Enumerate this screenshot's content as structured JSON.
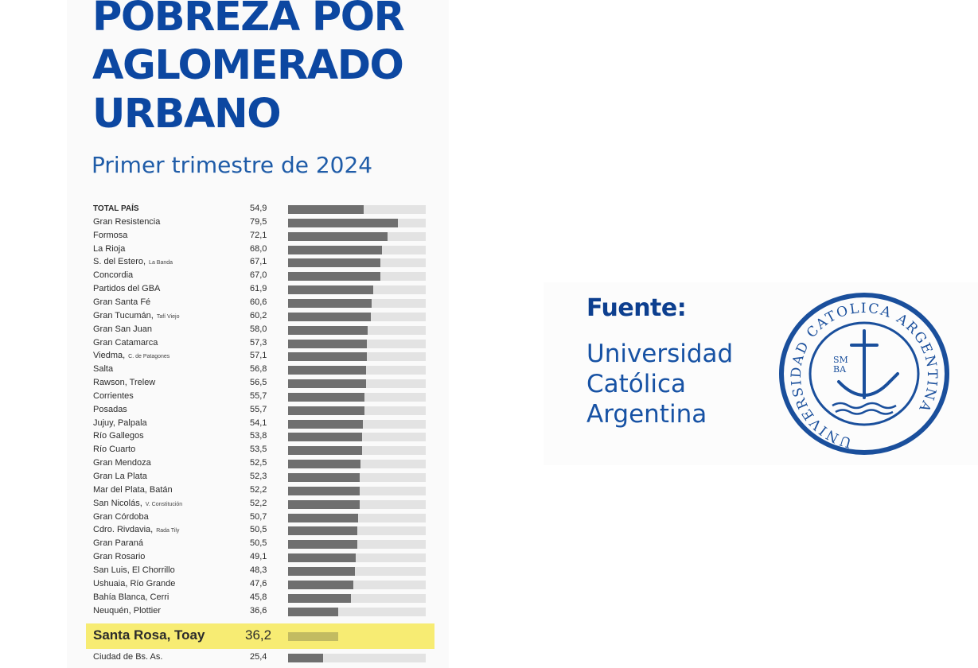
{
  "header": {
    "title_lines": [
      "POBREZA POR",
      "AGLOMERADO",
      "URBANO"
    ],
    "subtitle": "Primer trimestre de 2024"
  },
  "chart_data": {
    "type": "bar",
    "orientation": "horizontal",
    "title": "POBREZA POR AGLOMERADO URBANO",
    "subtitle": "Primer trimestre de 2024",
    "xlim": [
      0,
      100
    ],
    "grid": false,
    "legend": "none",
    "colors": {
      "bar": "#6f6f6f",
      "track": "#e3e3e3",
      "highlight": "#f7ec73",
      "highlight_bar": "#c2bb61"
    },
    "rows": [
      {
        "label": "TOTAL PAÍS",
        "sub": "",
        "value": 54.9,
        "display": "54,9",
        "bold": true
      },
      {
        "label": "Gran Resistencia",
        "sub": "",
        "value": 79.5,
        "display": "79,5"
      },
      {
        "label": "Formosa",
        "sub": "",
        "value": 72.1,
        "display": "72,1"
      },
      {
        "label": "La Rioja",
        "sub": "",
        "value": 68.0,
        "display": "68,0"
      },
      {
        "label": "S. del Estero,",
        "sub": "La Banda",
        "value": 67.1,
        "display": "67,1"
      },
      {
        "label": "Concordia",
        "sub": "",
        "value": 67.0,
        "display": "67,0"
      },
      {
        "label": "Partidos del GBA",
        "sub": "",
        "value": 61.9,
        "display": "61,9"
      },
      {
        "label": "Gran Santa Fé",
        "sub": "",
        "value": 60.6,
        "display": "60,6"
      },
      {
        "label": "Gran Tucumán,",
        "sub": "Tafí Viejo",
        "value": 60.2,
        "display": "60,2"
      },
      {
        "label": "Gran San Juan",
        "sub": "",
        "value": 58.0,
        "display": "58,0"
      },
      {
        "label": "Gran Catamarca",
        "sub": "",
        "value": 57.3,
        "display": "57,3"
      },
      {
        "label": "Viedma,",
        "sub": "C. de Patagones",
        "value": 57.1,
        "display": "57,1"
      },
      {
        "label": "Salta",
        "sub": "",
        "value": 56.8,
        "display": "56,8"
      },
      {
        "label": "Rawson, Trelew",
        "sub": "",
        "value": 56.5,
        "display": "56,5"
      },
      {
        "label": "Corrientes",
        "sub": "",
        "value": 55.7,
        "display": "55,7"
      },
      {
        "label": "Posadas",
        "sub": "",
        "value": 55.7,
        "display": "55,7"
      },
      {
        "label": "Jujuy, Palpala",
        "sub": "",
        "value": 54.1,
        "display": "54,1"
      },
      {
        "label": "Río Gallegos",
        "sub": "",
        "value": 53.8,
        "display": "53,8"
      },
      {
        "label": "Río Cuarto",
        "sub": "",
        "value": 53.5,
        "display": "53,5"
      },
      {
        "label": "Gran Mendoza",
        "sub": "",
        "value": 52.5,
        "display": "52,5"
      },
      {
        "label": "Gran La Plata",
        "sub": "",
        "value": 52.3,
        "display": "52,3"
      },
      {
        "label": "Mar del Plata, Batán",
        "sub": "",
        "value": 52.2,
        "display": "52,2"
      },
      {
        "label": "San Nicolás,",
        "sub": "V. Constitución",
        "value": 52.2,
        "display": "52,2"
      },
      {
        "label": "Gran Córdoba",
        "sub": "",
        "value": 50.7,
        "display": "50,7"
      },
      {
        "label": "Cdro. Rivdavia,",
        "sub": "Rada Tily",
        "value": 50.5,
        "display": "50,5"
      },
      {
        "label": "Gran Paraná",
        "sub": "",
        "value": 50.5,
        "display": "50,5"
      },
      {
        "label": "Gran Rosario",
        "sub": "",
        "value": 49.1,
        "display": "49,1"
      },
      {
        "label": "San Luis, El Chorrillo",
        "sub": "",
        "value": 48.3,
        "display": "48,3"
      },
      {
        "label": "Ushuaia, Río Grande",
        "sub": "",
        "value": 47.6,
        "display": "47,6"
      },
      {
        "label": "Bahía Blanca, Cerri",
        "sub": "",
        "value": 45.8,
        "display": "45,8"
      },
      {
        "label": "Neuquén, Plottier",
        "sub": "",
        "value": 36.6,
        "display": "36,6"
      },
      {
        "label": "Santa Rosa, Toay",
        "sub": "",
        "value": 36.2,
        "display": "36,2",
        "highlight": true
      },
      {
        "label": "Ciudad de Bs. As.",
        "sub": "",
        "value": 25.4,
        "display": "25,4"
      }
    ]
  },
  "source": {
    "label": "Fuente:",
    "institution_lines": [
      "Universidad",
      "Católica",
      "Argentina"
    ]
  },
  "seal": {
    "ring_text": "UNIVERSIDAD CATOLICA ARGENTINA",
    "monogram_top": "SM",
    "monogram_bottom": "BA",
    "color": "#1a4f9c"
  }
}
